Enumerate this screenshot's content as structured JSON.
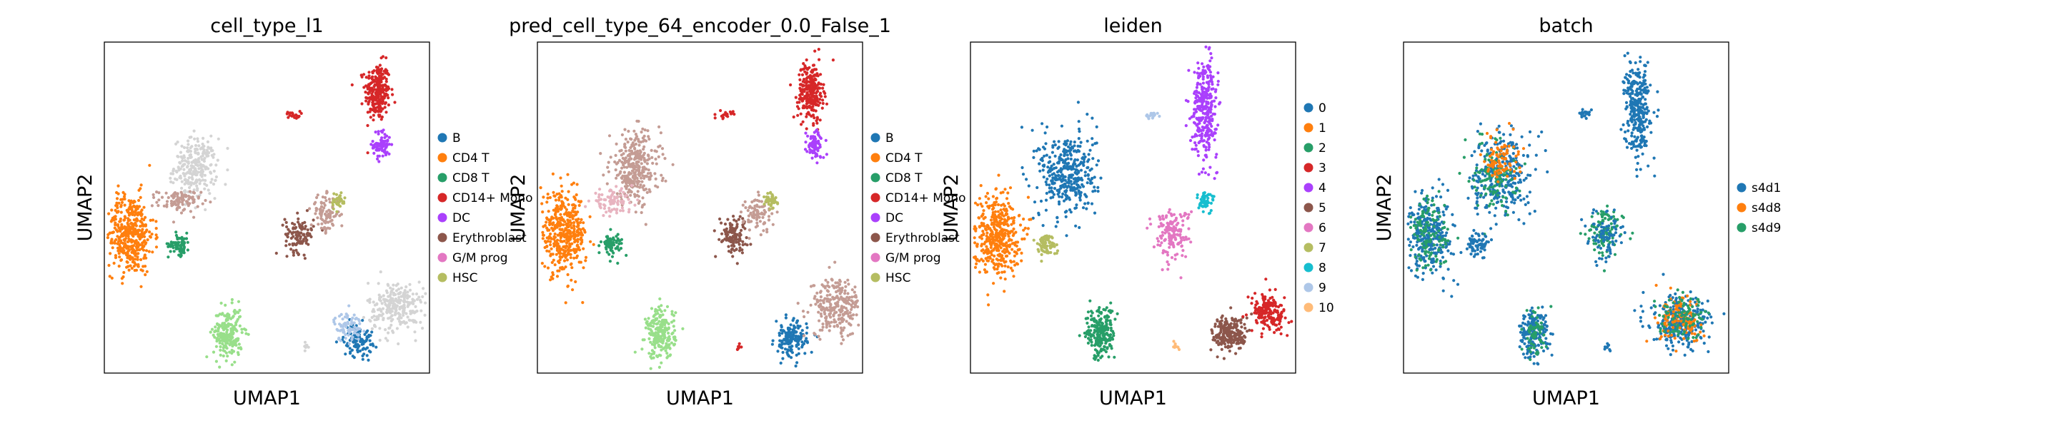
{
  "figure": {
    "layout": "4 UMAP scatter panels in one row, each with a categorical legend on its right"
  },
  "chart_data": [
    {
      "type": "scatter",
      "title": "cell_type_l1",
      "xlabel": "UMAP1",
      "ylabel": "UMAP2",
      "grid": false,
      "ticks": false,
      "legend_position": "right",
      "series": [
        {
          "name": "B",
          "color": "#1f77b4"
        },
        {
          "name": "CD4 T",
          "color": "#ff7f0e"
        },
        {
          "name": "CD8 T",
          "color": "#279e68"
        },
        {
          "name": "CD14+ Mono",
          "color": "#d62728"
        },
        {
          "name": "DC",
          "color": "#aa40fc"
        },
        {
          "name": "Erythroblast",
          "color": "#8c564b"
        },
        {
          "name": "G/M prog",
          "color": "#e377c2"
        },
        {
          "name": "HSC",
          "color": "#b5bd61"
        }
      ],
      "extra_colors_in_plot": [
        "#d4d4d4",
        "#98df8a",
        "#aec7e8",
        "#c49c94"
      ],
      "clusters": [
        {
          "cx": 0.84,
          "cy": 0.85,
          "rx": 0.035,
          "ry": 0.08,
          "color": "#d62728",
          "n": 260
        },
        {
          "cx": 0.855,
          "cy": 0.69,
          "rx": 0.025,
          "ry": 0.04,
          "color": "#aa40fc",
          "n": 80
        },
        {
          "cx": 0.58,
          "cy": 0.78,
          "rx": 0.02,
          "ry": 0.01,
          "color": "#d62728",
          "n": 20
        },
        {
          "cx": 0.28,
          "cy": 0.62,
          "rx": 0.06,
          "ry": 0.08,
          "color": "#d4d4d4",
          "n": 260
        },
        {
          "cx": 0.23,
          "cy": 0.52,
          "rx": 0.06,
          "ry": 0.03,
          "color": "#c49c94",
          "n": 90
        },
        {
          "cx": 0.08,
          "cy": 0.42,
          "rx": 0.065,
          "ry": 0.11,
          "color": "#ff7f0e",
          "n": 420
        },
        {
          "cx": 0.23,
          "cy": 0.39,
          "rx": 0.03,
          "ry": 0.03,
          "color": "#279e68",
          "n": 70
        },
        {
          "cx": 0.6,
          "cy": 0.42,
          "rx": 0.04,
          "ry": 0.05,
          "color": "#8c564b",
          "n": 110
        },
        {
          "cx": 0.68,
          "cy": 0.48,
          "rx": 0.04,
          "ry": 0.05,
          "color": "#c49c94",
          "n": 90
        },
        {
          "cx": 0.72,
          "cy": 0.52,
          "rx": 0.02,
          "ry": 0.025,
          "color": "#b5bd61",
          "n": 40
        },
        {
          "cx": 0.38,
          "cy": 0.12,
          "rx": 0.04,
          "ry": 0.07,
          "color": "#98df8a",
          "n": 220
        },
        {
          "cx": 0.78,
          "cy": 0.1,
          "rx": 0.04,
          "ry": 0.045,
          "color": "#1f77b4",
          "n": 110
        },
        {
          "cx": 0.75,
          "cy": 0.14,
          "rx": 0.04,
          "ry": 0.04,
          "color": "#aec7e8",
          "n": 80
        },
        {
          "cx": 0.9,
          "cy": 0.2,
          "rx": 0.08,
          "ry": 0.07,
          "color": "#d4d4d4",
          "n": 260
        },
        {
          "cx": 0.62,
          "cy": 0.08,
          "rx": 0.01,
          "ry": 0.01,
          "color": "#d4d4d4",
          "n": 8
        }
      ]
    },
    {
      "type": "scatter",
      "title": "pred_cell_type_64_encoder_0.0_False_1",
      "xlabel": "UMAP1",
      "ylabel": "UMAP2",
      "grid": false,
      "ticks": false,
      "legend_position": "right",
      "series": [
        {
          "name": "B",
          "color": "#1f77b4"
        },
        {
          "name": "CD4 T",
          "color": "#ff7f0e"
        },
        {
          "name": "CD8 T",
          "color": "#279e68"
        },
        {
          "name": "CD14+ Mono",
          "color": "#d62728"
        },
        {
          "name": "DC",
          "color": "#aa40fc"
        },
        {
          "name": "Erythroblast",
          "color": "#8c564b"
        },
        {
          "name": "G/M prog",
          "color": "#e377c2"
        },
        {
          "name": "HSC",
          "color": "#b5bd61"
        }
      ],
      "extra_colors_in_plot": [
        "#c49c94",
        "#98df8a",
        "#aec7e8"
      ],
      "clusters": [
        {
          "cx": 0.84,
          "cy": 0.85,
          "rx": 0.035,
          "ry": 0.08,
          "color": "#d62728",
          "n": 260
        },
        {
          "cx": 0.855,
          "cy": 0.69,
          "rx": 0.025,
          "ry": 0.04,
          "color": "#aa40fc",
          "n": 80
        },
        {
          "cx": 0.58,
          "cy": 0.78,
          "rx": 0.02,
          "ry": 0.01,
          "color": "#d62728",
          "n": 20
        },
        {
          "cx": 0.3,
          "cy": 0.62,
          "rx": 0.07,
          "ry": 0.1,
          "color": "#c49c94",
          "n": 320
        },
        {
          "cx": 0.23,
          "cy": 0.52,
          "rx": 0.06,
          "ry": 0.03,
          "color": "#e8b4c0",
          "n": 90
        },
        {
          "cx": 0.08,
          "cy": 0.42,
          "rx": 0.065,
          "ry": 0.11,
          "color": "#ff7f0e",
          "n": 420
        },
        {
          "cx": 0.23,
          "cy": 0.39,
          "rx": 0.03,
          "ry": 0.03,
          "color": "#279e68",
          "n": 70
        },
        {
          "cx": 0.6,
          "cy": 0.42,
          "rx": 0.04,
          "ry": 0.05,
          "color": "#8c564b",
          "n": 110
        },
        {
          "cx": 0.68,
          "cy": 0.48,
          "rx": 0.04,
          "ry": 0.05,
          "color": "#c49c94",
          "n": 90
        },
        {
          "cx": 0.72,
          "cy": 0.52,
          "rx": 0.02,
          "ry": 0.025,
          "color": "#b5bd61",
          "n": 40
        },
        {
          "cx": 0.38,
          "cy": 0.12,
          "rx": 0.04,
          "ry": 0.07,
          "color": "#98df8a",
          "n": 220
        },
        {
          "cx": 0.78,
          "cy": 0.1,
          "rx": 0.045,
          "ry": 0.05,
          "color": "#1f77b4",
          "n": 150
        },
        {
          "cx": 0.92,
          "cy": 0.2,
          "rx": 0.07,
          "ry": 0.08,
          "color": "#c49c94",
          "n": 260
        },
        {
          "cx": 0.62,
          "cy": 0.08,
          "rx": 0.01,
          "ry": 0.01,
          "color": "#d62728",
          "n": 8
        }
      ]
    },
    {
      "type": "scatter",
      "title": "leiden",
      "xlabel": "UMAP1",
      "ylabel": "UMAP2",
      "grid": false,
      "ticks": false,
      "legend_position": "right",
      "series": [
        {
          "name": "0",
          "color": "#1f77b4"
        },
        {
          "name": "1",
          "color": "#ff7f0e"
        },
        {
          "name": "2",
          "color": "#279e68"
        },
        {
          "name": "3",
          "color": "#d62728"
        },
        {
          "name": "4",
          "color": "#aa40fc"
        },
        {
          "name": "5",
          "color": "#8c564b"
        },
        {
          "name": "6",
          "color": "#e377c2"
        },
        {
          "name": "7",
          "color": "#b5bd61"
        },
        {
          "name": "8",
          "color": "#17becf"
        },
        {
          "name": "9",
          "color": "#aec7e8"
        },
        {
          "name": "10",
          "color": "#ffbb78"
        }
      ],
      "clusters": [
        {
          "cx": 0.72,
          "cy": 0.8,
          "rx": 0.035,
          "ry": 0.13,
          "color": "#aa40fc",
          "n": 320
        },
        {
          "cx": 0.56,
          "cy": 0.78,
          "rx": 0.02,
          "ry": 0.01,
          "color": "#aec7e8",
          "n": 20
        },
        {
          "cx": 0.3,
          "cy": 0.6,
          "rx": 0.08,
          "ry": 0.12,
          "color": "#1f77b4",
          "n": 380
        },
        {
          "cx": 0.08,
          "cy": 0.42,
          "rx": 0.065,
          "ry": 0.11,
          "color": "#ff7f0e",
          "n": 420
        },
        {
          "cx": 0.23,
          "cy": 0.39,
          "rx": 0.03,
          "ry": 0.03,
          "color": "#b5bd61",
          "n": 70
        },
        {
          "cx": 0.62,
          "cy": 0.42,
          "rx": 0.05,
          "ry": 0.07,
          "color": "#e377c2",
          "n": 150
        },
        {
          "cx": 0.72,
          "cy": 0.52,
          "rx": 0.025,
          "ry": 0.03,
          "color": "#17becf",
          "n": 50
        },
        {
          "cx": 0.4,
          "cy": 0.12,
          "rx": 0.04,
          "ry": 0.07,
          "color": "#279e68",
          "n": 220
        },
        {
          "cx": 0.8,
          "cy": 0.12,
          "rx": 0.05,
          "ry": 0.05,
          "color": "#8c564b",
          "n": 220
        },
        {
          "cx": 0.92,
          "cy": 0.18,
          "rx": 0.05,
          "ry": 0.05,
          "color": "#d62728",
          "n": 180
        },
        {
          "cx": 0.63,
          "cy": 0.08,
          "rx": 0.01,
          "ry": 0.01,
          "color": "#ffbb78",
          "n": 8
        }
      ]
    },
    {
      "type": "scatter",
      "title": "batch",
      "xlabel": "UMAP1",
      "ylabel": "UMAP2",
      "grid": false,
      "ticks": false,
      "legend_position": "right",
      "series": [
        {
          "name": "s4d1",
          "color": "#1f77b4"
        },
        {
          "name": "s4d8",
          "color": "#ff7f0e"
        },
        {
          "name": "s4d9",
          "color": "#279e68"
        }
      ],
      "clusters": [
        {
          "cx": 0.72,
          "cy": 0.8,
          "rx": 0.035,
          "ry": 0.13,
          "color": "#1f77b4",
          "n": 320
        },
        {
          "cx": 0.56,
          "cy": 0.78,
          "rx": 0.02,
          "ry": 0.01,
          "color": "#1f77b4",
          "n": 20
        },
        {
          "cx": 0.3,
          "cy": 0.6,
          "rx": 0.08,
          "ry": 0.12,
          "color": "#1f77b4",
          "n": 300
        },
        {
          "cx": 0.28,
          "cy": 0.6,
          "rx": 0.06,
          "ry": 0.1,
          "color": "#279e68",
          "n": 120
        },
        {
          "cx": 0.3,
          "cy": 0.65,
          "rx": 0.05,
          "ry": 0.06,
          "color": "#ff7f0e",
          "n": 90
        },
        {
          "cx": 0.08,
          "cy": 0.42,
          "rx": 0.065,
          "ry": 0.11,
          "color": "#1f77b4",
          "n": 300
        },
        {
          "cx": 0.08,
          "cy": 0.42,
          "rx": 0.06,
          "ry": 0.1,
          "color": "#279e68",
          "n": 120
        },
        {
          "cx": 0.23,
          "cy": 0.39,
          "rx": 0.03,
          "ry": 0.03,
          "color": "#1f77b4",
          "n": 70
        },
        {
          "cx": 0.62,
          "cy": 0.42,
          "rx": 0.05,
          "ry": 0.07,
          "color": "#279e68",
          "n": 100
        },
        {
          "cx": 0.62,
          "cy": 0.42,
          "rx": 0.05,
          "ry": 0.07,
          "color": "#1f77b4",
          "n": 80
        },
        {
          "cx": 0.4,
          "cy": 0.12,
          "rx": 0.04,
          "ry": 0.07,
          "color": "#1f77b4",
          "n": 180
        },
        {
          "cx": 0.4,
          "cy": 0.12,
          "rx": 0.035,
          "ry": 0.06,
          "color": "#279e68",
          "n": 60
        },
        {
          "cx": 0.85,
          "cy": 0.15,
          "rx": 0.08,
          "ry": 0.07,
          "color": "#1f77b4",
          "n": 280
        },
        {
          "cx": 0.86,
          "cy": 0.16,
          "rx": 0.07,
          "ry": 0.06,
          "color": "#ff7f0e",
          "n": 120
        },
        {
          "cx": 0.86,
          "cy": 0.16,
          "rx": 0.07,
          "ry": 0.06,
          "color": "#279e68",
          "n": 90
        },
        {
          "cx": 0.63,
          "cy": 0.08,
          "rx": 0.01,
          "ry": 0.01,
          "color": "#1f77b4",
          "n": 8
        }
      ]
    }
  ]
}
